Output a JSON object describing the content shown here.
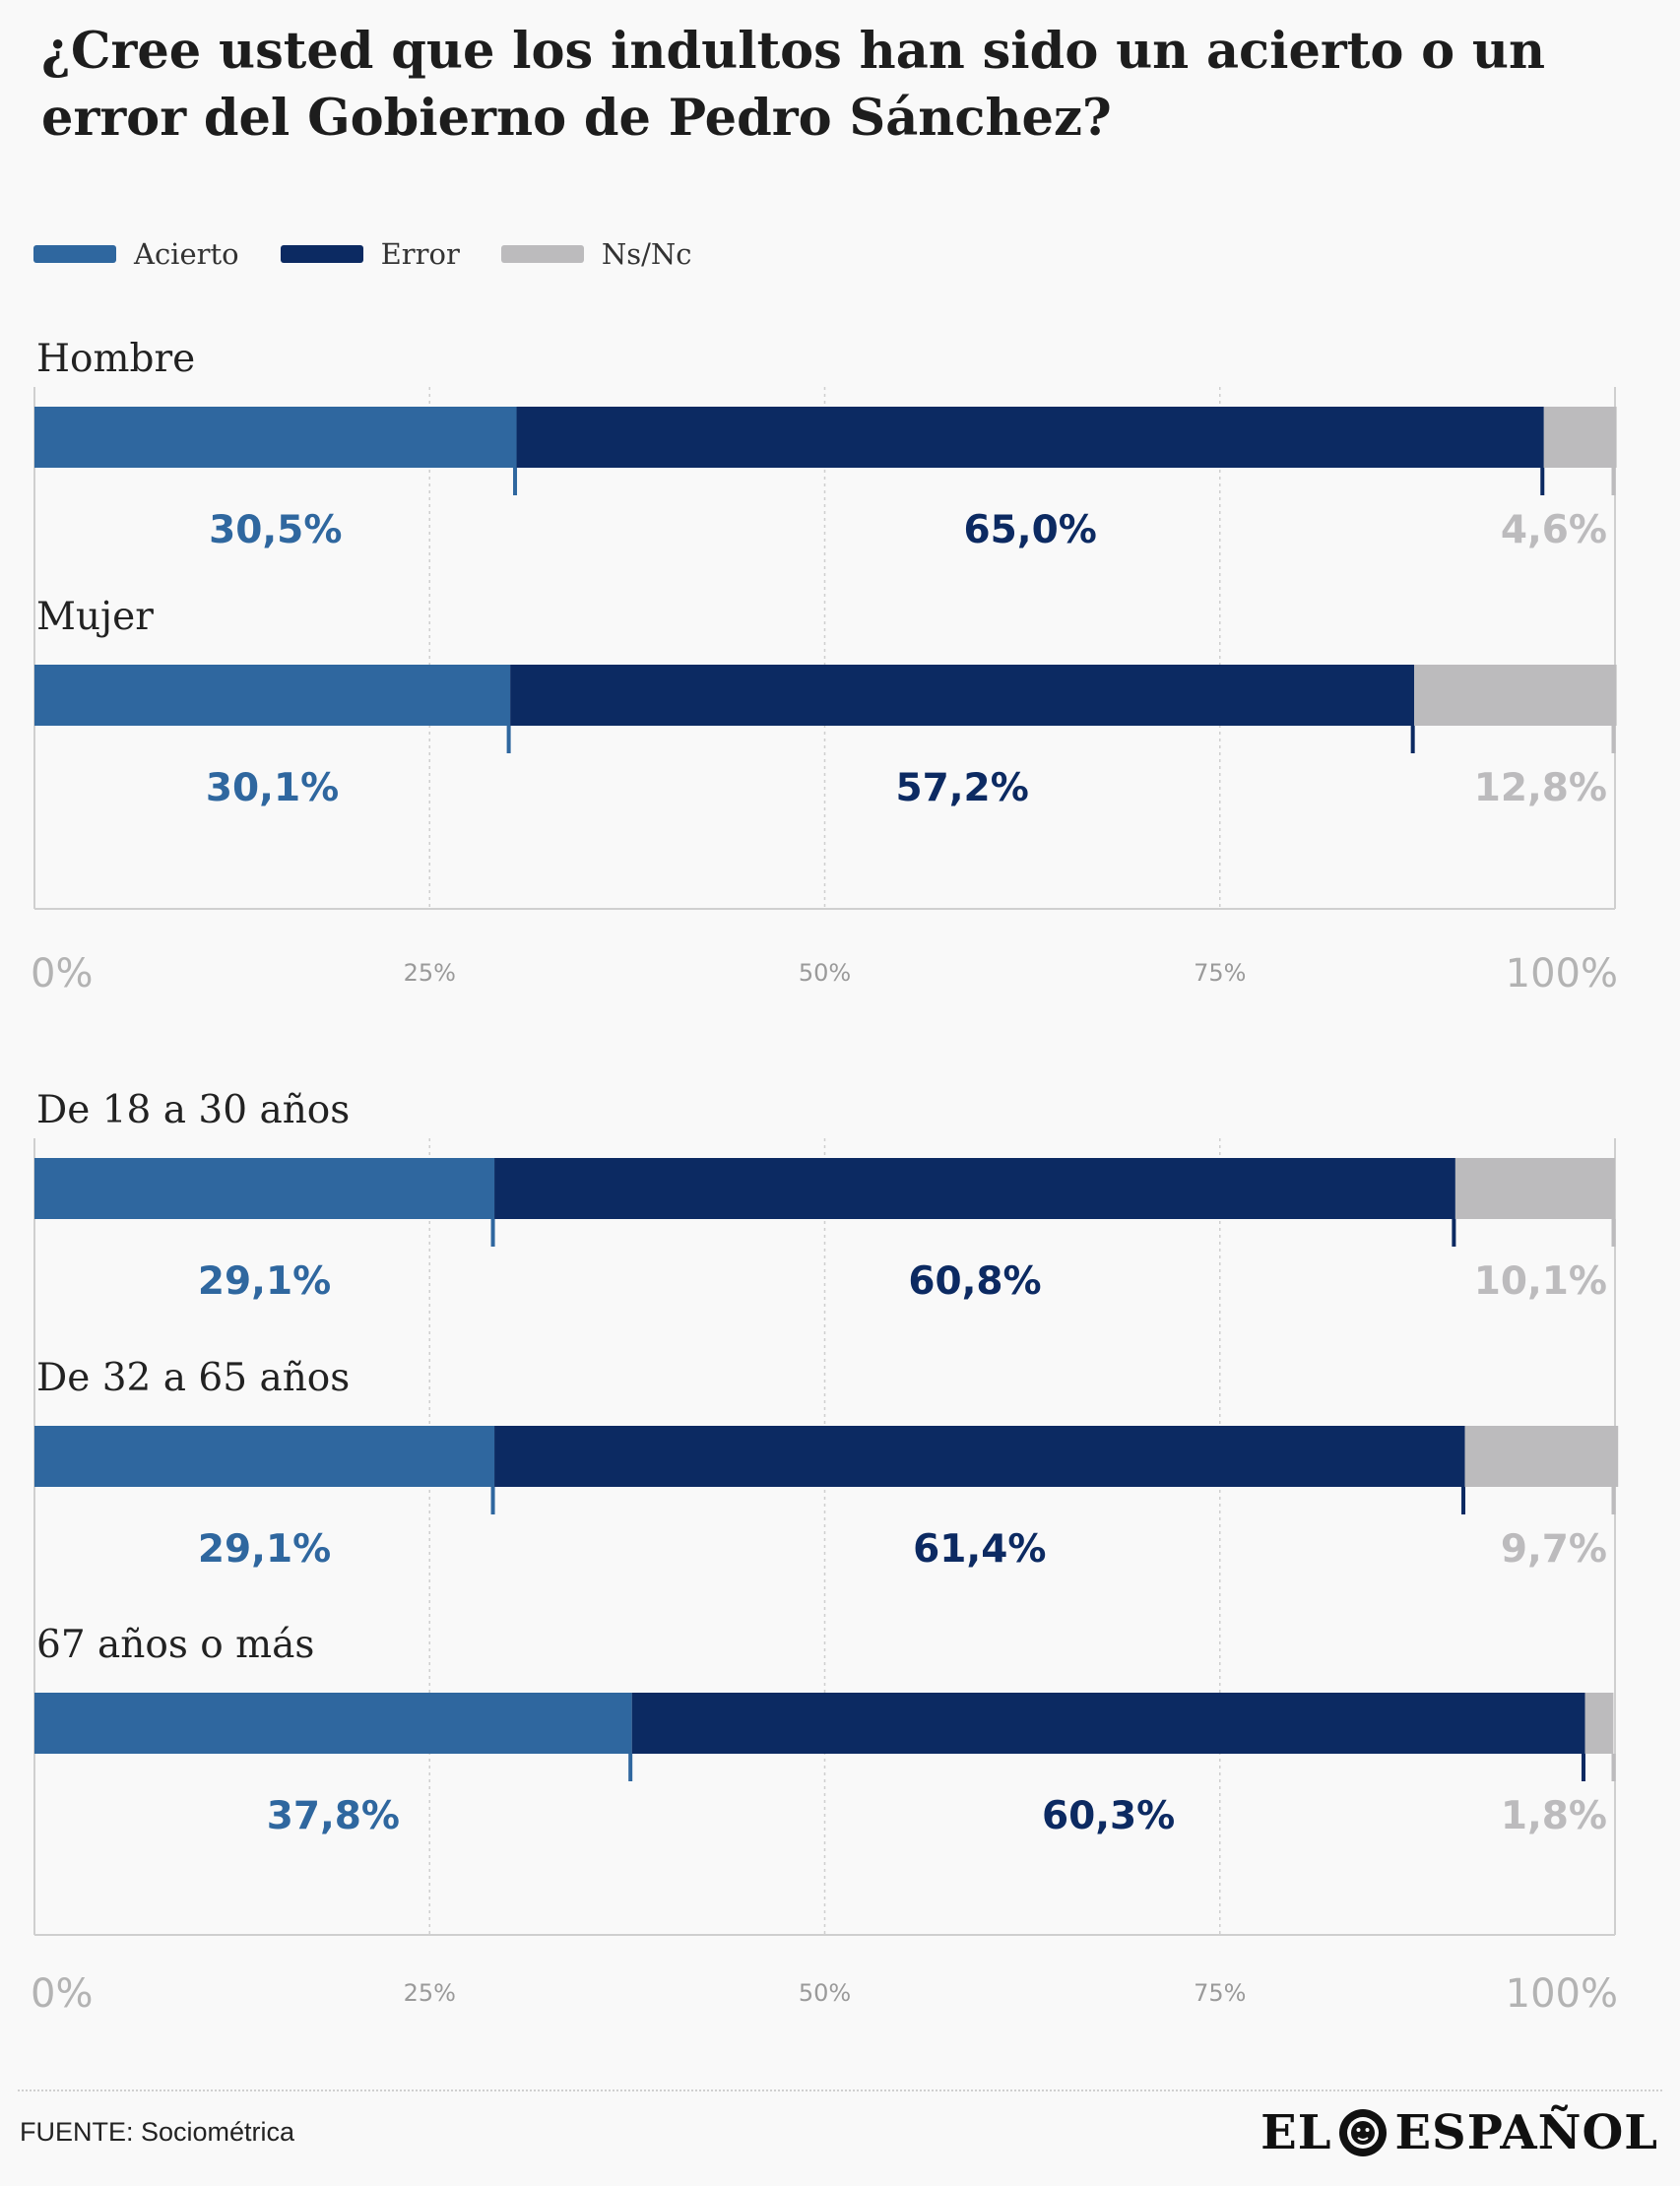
{
  "title": "¿Cree usted que los indultos han sido un acierto o un error del Gobierno de Pedro Sánchez?",
  "colors": {
    "acierto": "#2f679f",
    "error": "#0c2a62",
    "nsnc": "#bcbbbd"
  },
  "legend": [
    {
      "label": "Acierto",
      "color": "#2f679f"
    },
    {
      "label": "Error",
      "color": "#0c2a62"
    },
    {
      "label": "Ns/Nc",
      "color": "#bcbbbd"
    }
  ],
  "chart_data": [
    {
      "type": "bar",
      "orientation": "horizontal",
      "stacked": true,
      "categories": [
        "Hombre",
        "Mujer"
      ],
      "series": [
        {
          "name": "Acierto",
          "values": [
            30.5,
            30.1
          ],
          "labels": [
            "30,5%",
            "30,1%"
          ]
        },
        {
          "name": "Error",
          "values": [
            65.0,
            57.2
          ],
          "labels": [
            "65,0%",
            "57,2%"
          ]
        },
        {
          "name": "Ns/Nc",
          "values": [
            4.6,
            12.8
          ],
          "labels": [
            "4,6%",
            "12,8%"
          ]
        }
      ],
      "xlim": [
        0,
        100
      ],
      "ticks": [
        "0%",
        "25%",
        "50%",
        "75%",
        "100%"
      ],
      "grid": true,
      "legend": "top-left"
    },
    {
      "type": "bar",
      "orientation": "horizontal",
      "stacked": true,
      "categories": [
        "De 18 a 30 años",
        "De 32 a 65 años",
        "67 años o más"
      ],
      "series": [
        {
          "name": "Acierto",
          "values": [
            29.1,
            29.1,
            37.8
          ],
          "labels": [
            "29,1%",
            "29,1%",
            "37,8%"
          ]
        },
        {
          "name": "Error",
          "values": [
            60.8,
            61.4,
            60.3
          ],
          "labels": [
            "60,8%",
            "61,4%",
            "60,3%"
          ]
        },
        {
          "name": "Ns/Nc",
          "values": [
            10.1,
            9.7,
            1.8
          ],
          "labels": [
            "10,1%",
            "9,7%",
            "1,8%"
          ]
        }
      ],
      "xlim": [
        0,
        100
      ],
      "ticks": [
        "0%",
        "25%",
        "50%",
        "75%",
        "100%"
      ],
      "grid": true,
      "legend": "top-left"
    }
  ],
  "source": "FUENTE: Sociométrica",
  "brand": {
    "left": "EL",
    "right": "ESPAÑOL",
    "logo_icon": "lion-icon"
  }
}
